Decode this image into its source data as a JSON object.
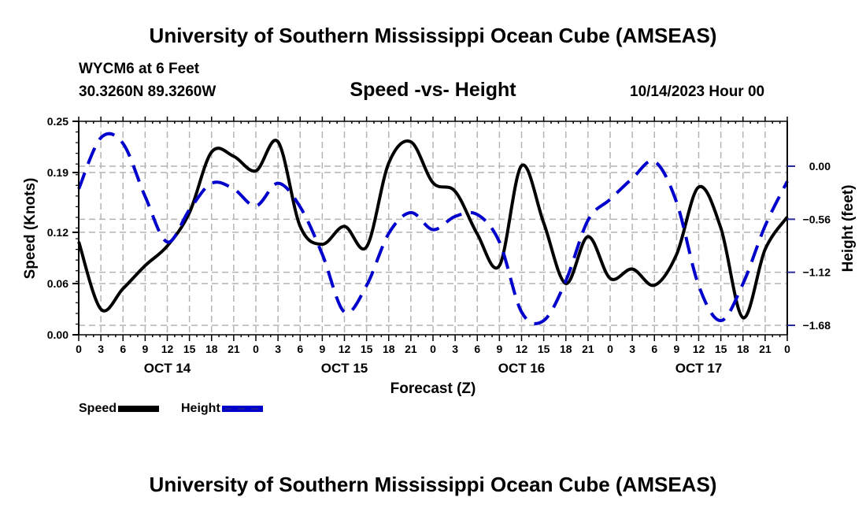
{
  "header": {
    "main_title": "University of Southern Mississippi Ocean Cube (AMSEAS)",
    "station": "WYCM6 at 6 Feet",
    "coords": "30.3260N  89.3260W",
    "subtitle": "Speed -vs- Height",
    "datetime": "10/14/2023 Hour 00"
  },
  "footer": {
    "bottom_title": "University of Southern Mississippi Ocean Cube (AMSEAS)"
  },
  "legend": {
    "speed_label": "Speed",
    "height_label": "Height"
  },
  "colors": {
    "speed": "#000000",
    "height": "#0000cc",
    "grid": "#b4b4b4",
    "right_axis_ticks": "#2a2a9a"
  },
  "chart_data": {
    "type": "line",
    "title": "Speed -vs- Height",
    "xlabel": "Forecast (Z)",
    "ylabel": "Speed (Knots)",
    "y2label": "Height (feet)",
    "x_unit": "hours from 10/14/2023 00Z",
    "x": [
      0,
      3,
      6,
      9,
      12,
      15,
      18,
      21,
      24,
      27,
      30,
      33,
      36,
      39,
      42,
      45,
      48,
      51,
      54,
      57,
      60,
      63,
      66,
      69,
      72,
      75,
      78,
      81,
      84,
      87,
      90,
      93,
      96
    ],
    "xlim": [
      0,
      96
    ],
    "x_tick_labels": [
      "0",
      "3",
      "6",
      "9",
      "12",
      "15",
      "18",
      "21",
      "0",
      "3",
      "6",
      "9",
      "12",
      "15",
      "18",
      "21",
      "0",
      "3",
      "6",
      "9",
      "12",
      "15",
      "18",
      "21",
      "0",
      "3",
      "6",
      "9",
      "12",
      "15",
      "18",
      "21",
      "0"
    ],
    "day_labels": [
      {
        "label": "OCT 14",
        "center_hour": 12
      },
      {
        "label": "OCT 15",
        "center_hour": 36
      },
      {
        "label": "OCT 16",
        "center_hour": 60
      },
      {
        "label": "OCT 17",
        "center_hour": 84
      }
    ],
    "ylim": [
      0,
      0.25
    ],
    "y_ticks": [
      0.0,
      0.06,
      0.12,
      0.19,
      0.25
    ],
    "y_tick_labels": [
      "0.00",
      "0.06",
      "0.12",
      "0.19",
      "0.25"
    ],
    "y2lim": [
      -1.78,
      0.38
    ],
    "y2_ticks": [
      0.0,
      -0.56,
      -1.12,
      -1.68
    ],
    "y2_tick_labels": [
      "0.00",
      "−0.56",
      "−1.12",
      "−1.68"
    ],
    "grid": true,
    "legend_position": "bottom-left",
    "series": [
      {
        "name": "Speed",
        "axis": "left",
        "style": "solid",
        "values": [
          0.109,
          0.03,
          0.054,
          0.081,
          0.104,
          0.143,
          0.214,
          0.209,
          0.192,
          0.226,
          0.127,
          0.106,
          0.127,
          0.103,
          0.201,
          0.226,
          0.178,
          0.168,
          0.118,
          0.081,
          0.198,
          0.131,
          0.06,
          0.115,
          0.066,
          0.077,
          0.058,
          0.094,
          0.173,
          0.125,
          0.02,
          0.1,
          0.138
        ]
      },
      {
        "name": "Height",
        "axis": "right",
        "style": "dashed",
        "values": [
          -0.24,
          0.3,
          0.24,
          -0.32,
          -0.8,
          -0.46,
          -0.18,
          -0.24,
          -0.42,
          -0.18,
          -0.43,
          -0.93,
          -1.54,
          -1.26,
          -0.71,
          -0.49,
          -0.67,
          -0.53,
          -0.51,
          -0.8,
          -1.54,
          -1.63,
          -1.21,
          -0.57,
          -0.35,
          -0.13,
          0.05,
          -0.38,
          -1.26,
          -1.63,
          -1.24,
          -0.63,
          -0.16
        ]
      }
    ]
  }
}
